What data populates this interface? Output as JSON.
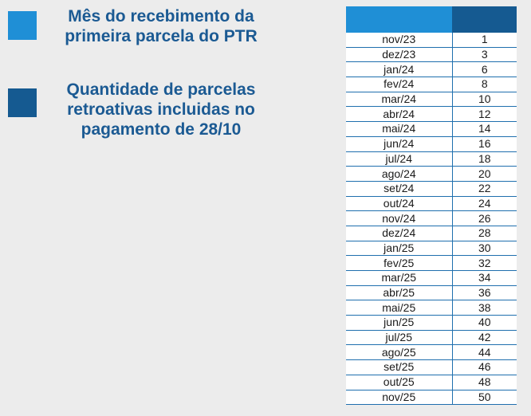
{
  "legend": [
    {
      "lines": [
        "Mês do recebimento da",
        "primeira parcela do PTR"
      ],
      "color": "#1f8fd6"
    },
    {
      "lines": [
        "Quantidade de parcelas",
        "retroativas incluidas no",
        "pagamento de 28/10"
      ],
      "color": "#155a91"
    }
  ],
  "table": {
    "header_colors": [
      "#1f8fd6",
      "#155a91"
    ],
    "rows": [
      {
        "month": "nov/23",
        "count": "1"
      },
      {
        "month": "dez/23",
        "count": "3"
      },
      {
        "month": "jan/24",
        "count": "6"
      },
      {
        "month": "fev/24",
        "count": "8"
      },
      {
        "month": "mar/24",
        "count": "10"
      },
      {
        "month": "abr/24",
        "count": "12"
      },
      {
        "month": "mai/24",
        "count": "14"
      },
      {
        "month": "jun/24",
        "count": "16"
      },
      {
        "month": "jul/24",
        "count": "18"
      },
      {
        "month": "ago/24",
        "count": "20"
      },
      {
        "month": "set/24",
        "count": "22"
      },
      {
        "month": "out/24",
        "count": "24"
      },
      {
        "month": "nov/24",
        "count": "26"
      },
      {
        "month": "dez/24",
        "count": "28"
      },
      {
        "month": "jan/25",
        "count": "30"
      },
      {
        "month": "fev/25",
        "count": "32"
      },
      {
        "month": "mar/25",
        "count": "34"
      },
      {
        "month": "abr/25",
        "count": "36"
      },
      {
        "month": "mai/25",
        "count": "38"
      },
      {
        "month": "jun/25",
        "count": "40"
      },
      {
        "month": "jul/25",
        "count": "42"
      },
      {
        "month": "ago/25",
        "count": "44"
      },
      {
        "month": "set/25",
        "count": "46"
      },
      {
        "month": "out/25",
        "count": "48"
      },
      {
        "month": "nov/25",
        "count": "50"
      }
    ]
  }
}
